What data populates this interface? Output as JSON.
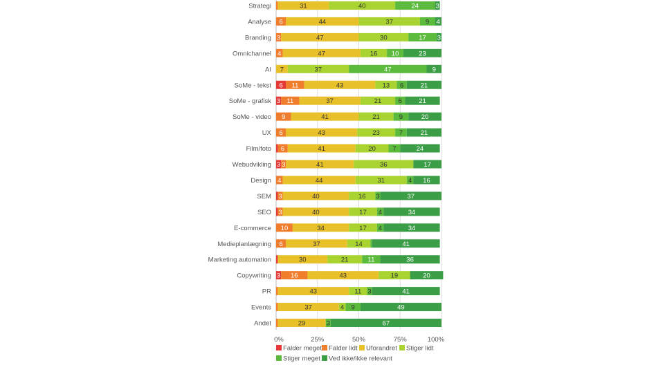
{
  "chart_data": {
    "type": "bar",
    "orientation": "horizontal",
    "stacked": true,
    "percent": true,
    "categories": [
      "Strategi",
      "Analyse",
      "Branding",
      "Omnichannel",
      "AI",
      "SoMe - tekst",
      "SoMe - grafisk",
      "SoMe - video",
      "UX",
      "Film/foto",
      "Webudvikling",
      "Design",
      "SEM",
      "SEO",
      "E-commerce",
      "Medieplanlægning",
      "Marketing automation",
      "Copywriting",
      "PR",
      "Events",
      "Andet"
    ],
    "series": [
      {
        "name": "Falder meget",
        "color": "#e53935",
        "values": [
          0,
          0,
          0,
          0,
          0,
          6,
          3,
          0,
          0,
          1,
          3,
          0,
          1,
          1,
          0,
          0,
          1,
          3,
          0,
          0,
          0
        ]
      },
      {
        "name": "Falder lidt",
        "color": "#ef7d2b",
        "values": [
          1,
          6,
          3,
          4,
          0,
          11,
          11,
          9,
          6,
          6,
          3,
          4,
          3,
          3,
          10,
          6,
          0,
          16,
          1,
          1,
          1
        ]
      },
      {
        "name": "Uforandret",
        "color": "#e8c12a",
        "values": [
          31,
          44,
          47,
          47,
          7,
          43,
          37,
          41,
          43,
          41,
          41,
          44,
          40,
          40,
          34,
          37,
          30,
          43,
          43,
          37,
          29
        ]
      },
      {
        "name": "Stiger lidt",
        "color": "#a9d331",
        "values": [
          40,
          37,
          30,
          16,
          37,
          13,
          21,
          21,
          23,
          20,
          36,
          31,
          16,
          17,
          17,
          14,
          21,
          19,
          11,
          4,
          0
        ]
      },
      {
        "name": "Stiger meget",
        "color": "#5cbb3c",
        "values": [
          24,
          9,
          17,
          10,
          47,
          6,
          6,
          9,
          7,
          7,
          0,
          4,
          3,
          4,
          4,
          1,
          11,
          0,
          3,
          9,
          3
        ]
      },
      {
        "name": "Ved ikke/ikke relevant",
        "color": "#3b9d46",
        "values": [
          3,
          4,
          3,
          23,
          9,
          21,
          21,
          20,
          21,
          24,
          17,
          16,
          37,
          34,
          34,
          41,
          36,
          20,
          41,
          49,
          67
        ]
      }
    ],
    "xlim": [
      0,
      100
    ],
    "x_ticks": [
      "0%",
      "25%",
      "50%",
      "75%",
      "100%"
    ],
    "grid": true,
    "legend_placement": "bottom",
    "label_min_value": 3
  }
}
